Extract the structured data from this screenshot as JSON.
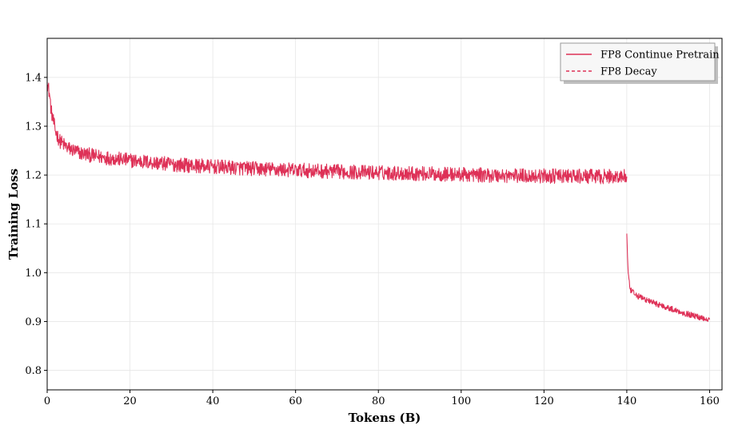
{
  "chart_data": {
    "type": "line",
    "title": "",
    "xlabel": "Tokens (B)",
    "ylabel": "Training Loss",
    "xlim": [
      0,
      163
    ],
    "ylim": [
      0.76,
      1.48
    ],
    "xticks": [
      0,
      20,
      40,
      60,
      80,
      100,
      120,
      140,
      160
    ],
    "yticks": [
      0.8,
      0.9,
      1.0,
      1.1,
      1.2,
      1.3,
      1.4
    ],
    "grid": true,
    "legend_position": "top-right",
    "colors": {
      "line": "#de3157"
    },
    "series": [
      {
        "name": "FP8 Continue Pretrain",
        "style": "solid",
        "x_range": [
          0,
          140
        ],
        "points": [
          [
            0,
            1.39
          ],
          [
            0.5,
            1.37
          ],
          [
            1,
            1.33
          ],
          [
            2,
            1.29
          ],
          [
            3,
            1.27
          ],
          [
            5,
            1.255
          ],
          [
            8,
            1.245
          ],
          [
            12,
            1.238
          ],
          [
            20,
            1.23
          ],
          [
            30,
            1.222
          ],
          [
            40,
            1.217
          ],
          [
            50,
            1.213
          ],
          [
            60,
            1.21
          ],
          [
            70,
            1.207
          ],
          [
            80,
            1.205
          ],
          [
            90,
            1.203
          ],
          [
            100,
            1.201
          ],
          [
            110,
            1.199
          ],
          [
            120,
            1.198
          ],
          [
            130,
            1.197
          ],
          [
            140,
            1.197
          ]
        ],
        "noise_amplitude": 0.015
      },
      {
        "name": "FP8 Decay",
        "style": "dashed",
        "x_range": [
          140,
          160
        ],
        "points": [
          [
            140,
            1.08
          ],
          [
            140.3,
            1.0
          ],
          [
            140.8,
            0.965
          ],
          [
            142,
            0.955
          ],
          [
            145,
            0.943
          ],
          [
            148,
            0.934
          ],
          [
            151,
            0.925
          ],
          [
            154,
            0.917
          ],
          [
            157,
            0.91
          ],
          [
            160,
            0.904
          ]
        ],
        "noise_amplitude": 0.006
      }
    ]
  }
}
